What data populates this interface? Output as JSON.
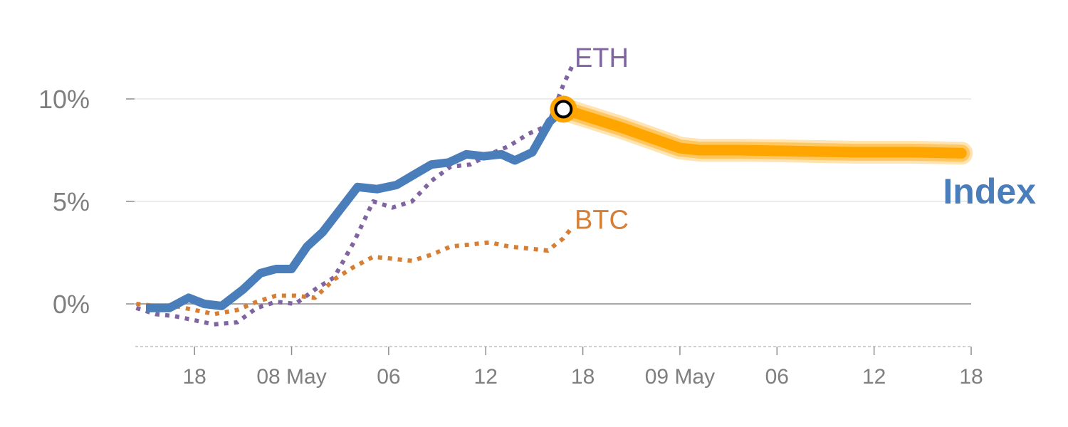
{
  "chart_data": {
    "type": "line",
    "title": "",
    "xlabel": "",
    "ylabel": "",
    "y_unit": "%",
    "ylim": [
      -2,
      10
    ],
    "grid": true,
    "y_ticks": [
      {
        "value": 0,
        "label": "0%"
      },
      {
        "value": 5,
        "label": "5%"
      },
      {
        "value": 10,
        "label": "10%"
      }
    ],
    "x_ticks": [
      {
        "index": 2,
        "label": "18"
      },
      {
        "index": 7,
        "label": "08 May"
      },
      {
        "index": 12,
        "label": "06"
      },
      {
        "index": 17,
        "label": "12"
      },
      {
        "index": 22,
        "label": "18"
      },
      {
        "index": 27,
        "label": "09 May"
      },
      {
        "index": 32,
        "label": "06"
      },
      {
        "index": 37,
        "label": "12"
      },
      {
        "index": 42,
        "label": "18"
      }
    ],
    "x_range": [
      -1.05,
      42
    ],
    "series": [
      {
        "name": "Index",
        "label": "Index",
        "color": "#4a7ebb",
        "style": "solid",
        "x": [
          -0.5,
          0.7,
          1.7,
          2.5,
          3.4,
          4.5,
          5.4,
          6.2,
          7.0,
          7.8,
          8.6,
          9.5,
          10.4,
          11.4,
          12.4,
          13.3,
          14.2,
          15.1,
          16.0,
          16.9,
          17.8,
          18.5,
          19.4,
          20.3,
          21.0
        ],
        "values": [
          -0.2,
          -0.2,
          0.3,
          0.0,
          -0.1,
          0.7,
          1.5,
          1.7,
          1.7,
          2.8,
          3.5,
          4.6,
          5.7,
          5.6,
          5.8,
          6.3,
          6.8,
          6.9,
          7.3,
          7.2,
          7.3,
          7.0,
          7.4,
          8.9,
          9.5
        ]
      },
      {
        "name": "ETH",
        "label": "ETH",
        "color": "#8064a2",
        "style": "dotted",
        "x": [
          -1.0,
          0.0,
          1.0,
          2.0,
          3.0,
          4.2,
          5.2,
          6.2,
          7.2,
          8.2,
          9.2,
          10.2,
          11.2,
          12.2,
          13.2,
          14.2,
          15.2,
          16.2,
          17.2,
          18.2,
          19.2,
          20.2,
          21.0,
          21.5
        ],
        "values": [
          -0.2,
          -0.5,
          -0.6,
          -0.8,
          -1.0,
          -0.9,
          -0.2,
          0.1,
          0.0,
          0.7,
          1.3,
          3.0,
          5.0,
          4.7,
          5.0,
          6.0,
          6.7,
          6.8,
          7.3,
          7.7,
          8.3,
          8.7,
          10.7,
          11.7
        ]
      },
      {
        "name": "BTC",
        "label": "BTC",
        "color": "#d67f34",
        "style": "dotted",
        "x": [
          -1.0,
          0.0,
          1.0,
          2.0,
          3.0,
          4.2,
          5.2,
          6.2,
          7.2,
          8.2,
          9.2,
          10.2,
          11.2,
          12.2,
          13.2,
          14.2,
          15.2,
          16.2,
          17.2,
          18.2,
          19.2,
          20.2,
          21.0,
          21.5
        ],
        "values": [
          0.0,
          -0.1,
          -0.1,
          -0.3,
          -0.5,
          -0.3,
          0.1,
          0.4,
          0.4,
          0.3,
          1.2,
          1.8,
          2.3,
          2.2,
          2.1,
          2.4,
          2.8,
          2.9,
          3.0,
          2.8,
          2.7,
          2.6,
          3.2,
          3.8
        ]
      },
      {
        "name": "Index projection",
        "color": "#ffa500",
        "style": "band",
        "x": [
          21.0,
          24.0,
          27.0,
          28.0,
          30.0,
          33.0,
          36.0,
          39.0,
          41.5
        ],
        "values": [
          9.5,
          8.6,
          7.6,
          7.5,
          7.5,
          7.45,
          7.4,
          7.4,
          7.35
        ]
      }
    ],
    "highlight": {
      "series": "Index",
      "x": 21.0,
      "value": 9.5,
      "color": "#ffa500"
    },
    "legend": "inline"
  }
}
